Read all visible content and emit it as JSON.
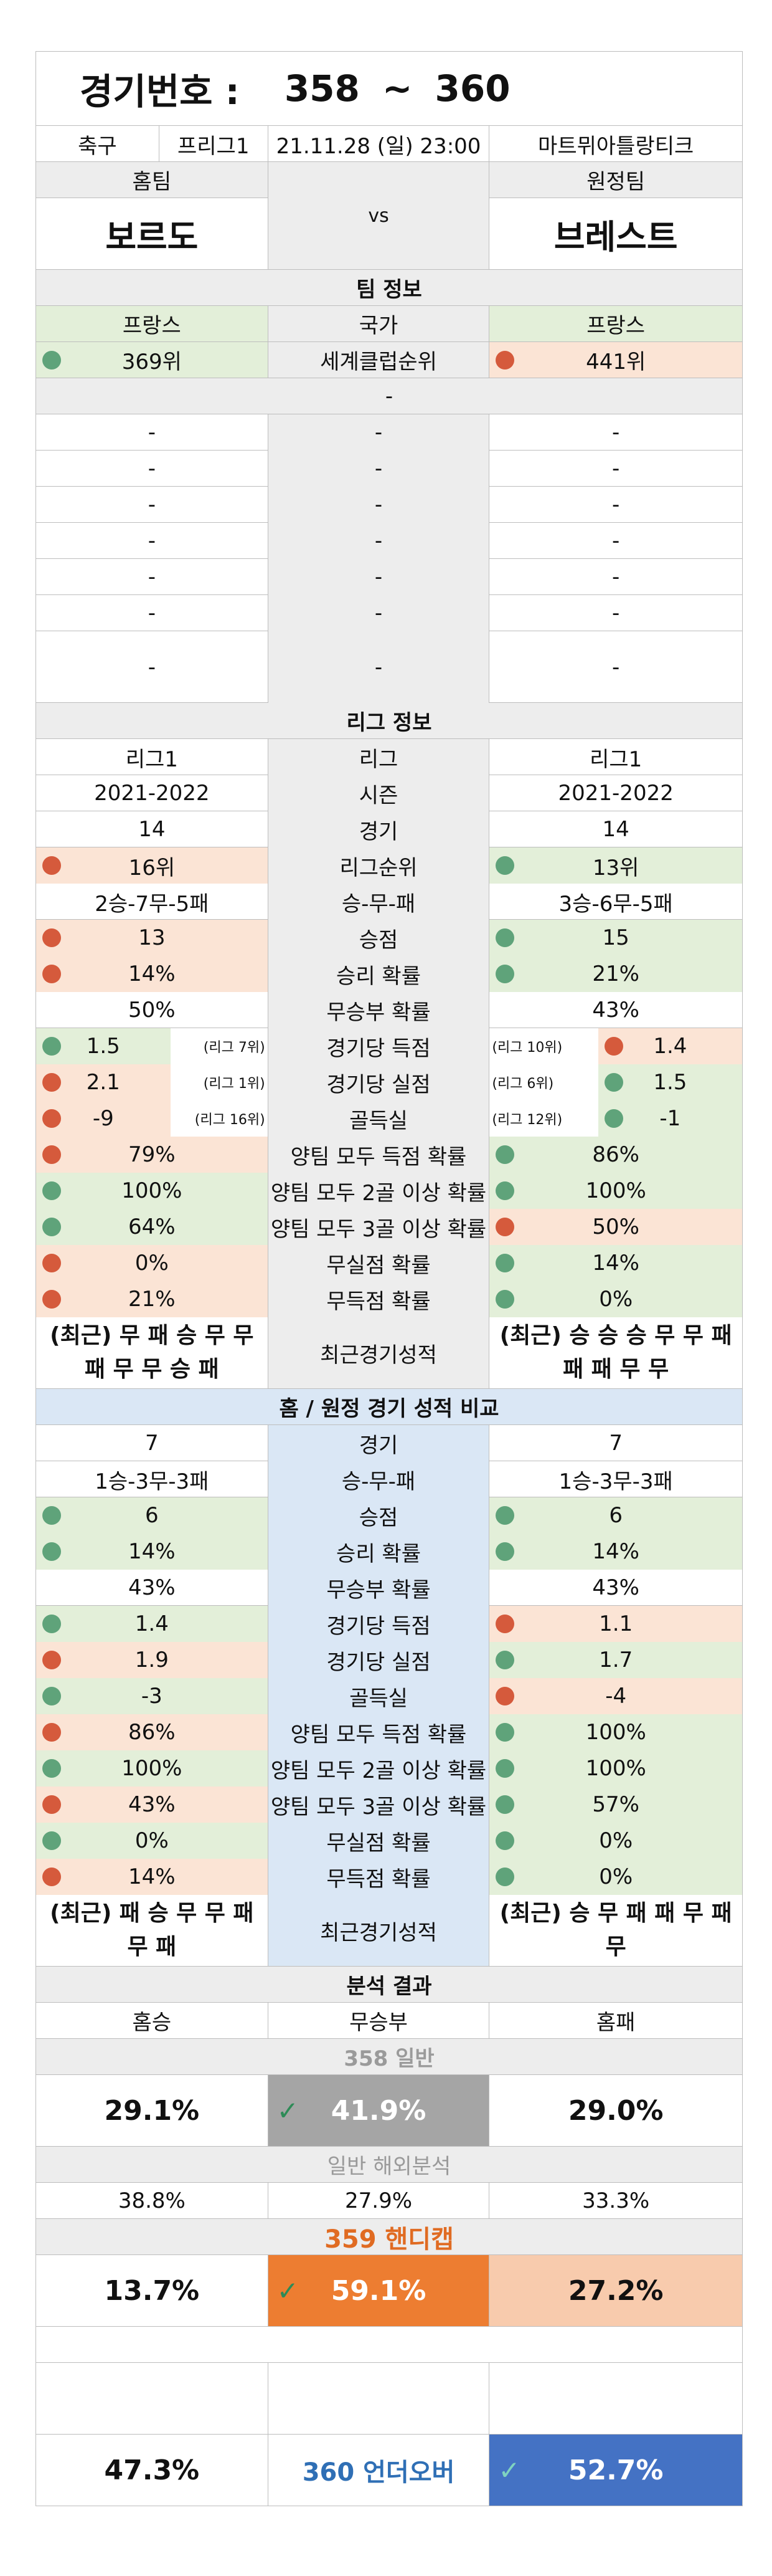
{
  "header": {
    "label": "경기번호 :",
    "from": "358",
    "tilde": "~",
    "to": "360"
  },
  "match": {
    "sport": "축구",
    "league": "프리그1",
    "datetime": "21.11.28 (일) 23:00",
    "venue": "마트뮈아틀랑티크",
    "home_label": "홈팀",
    "away_label": "원정팀",
    "home": "보르도",
    "away": "브레스트",
    "vs": "vs"
  },
  "team_info": {
    "title": "팀 정보",
    "country_label": "국가",
    "home_country": "프랑스",
    "away_country": "프랑스",
    "club_rank_label": "세계클럽순위",
    "home_club_rank": "369위",
    "away_club_rank": "441위",
    "dash": "-"
  },
  "league_info": {
    "title": "리그 정보",
    "rows": [
      {
        "label": "리그",
        "home": "리그1",
        "away": "리그1"
      },
      {
        "label": "시즌",
        "home": "2021-2022",
        "away": "2021-2022"
      },
      {
        "label": "경기",
        "home": "14",
        "away": "14"
      },
      {
        "label": "리그순위",
        "home": "16위",
        "away": "13위"
      },
      {
        "label": "승-무-패",
        "home": "2승-7무-5패",
        "away": "3승-6무-5패"
      },
      {
        "label": "승점",
        "home": "13",
        "away": "15"
      },
      {
        "label": "승리 확률",
        "home": "14%",
        "away": "21%"
      },
      {
        "label": "무승부 확률",
        "home": "50%",
        "away": "43%"
      },
      {
        "label": "경기당 득점",
        "home": "1.5",
        "home_rank": "(리그 7위)",
        "away": "1.4",
        "away_rank": "(리그 10위)"
      },
      {
        "label": "경기당 실점",
        "home": "2.1",
        "home_rank": "(리그 1위)",
        "away": "1.5",
        "away_rank": "(리그 6위)"
      },
      {
        "label": "골득실",
        "home": "-9",
        "home_rank": "(리그 16위)",
        "away": "-1",
        "away_rank": "(리그 12위)"
      },
      {
        "label": "양팀 모두 득점 확률",
        "home": "79%",
        "away": "86%"
      },
      {
        "label": "양팀 모두 2골 이상 확률",
        "home": "100%",
        "away": "100%"
      },
      {
        "label": "양팀 모두 3골 이상 확률",
        "home": "64%",
        "away": "50%"
      },
      {
        "label": "무실점 확률",
        "home": "0%",
        "away": "14%"
      },
      {
        "label": "무득점 확률",
        "home": "21%",
        "away": "0%"
      }
    ],
    "recent_label": "최근경기성적",
    "home_recent": "(최근) 무 패 승 무 무 패 무 무 승 패",
    "away_recent": "(최근) 승 승 승 무 무 패 패 패 무 무"
  },
  "ha_compare": {
    "title": "홈 / 원정 경기 성적 비교",
    "rows": [
      {
        "label": "경기",
        "home": "7",
        "away": "7"
      },
      {
        "label": "승-무-패",
        "home": "1승-3무-3패",
        "away": "1승-3무-3패"
      },
      {
        "label": "승점",
        "home": "6",
        "away": "6"
      },
      {
        "label": "승리 확률",
        "home": "14%",
        "away": "14%"
      },
      {
        "label": "무승부 확률",
        "home": "43%",
        "away": "43%"
      },
      {
        "label": "경기당 득점",
        "home": "1.4",
        "away": "1.1"
      },
      {
        "label": "경기당 실점",
        "home": "1.9",
        "away": "1.7"
      },
      {
        "label": "골득실",
        "home": "-3",
        "away": "-4"
      },
      {
        "label": "양팀 모두 득점 확률",
        "home": "86%",
        "away": "100%"
      },
      {
        "label": "양팀 모두 2골 이상 확률",
        "home": "100%",
        "away": "100%"
      },
      {
        "label": "양팀 모두 3골 이상 확률",
        "home": "43%",
        "away": "57%"
      },
      {
        "label": "무실점 확률",
        "home": "0%",
        "away": "0%"
      },
      {
        "label": "무득점 확률",
        "home": "14%",
        "away": "0%"
      }
    ],
    "recent_label": "최근경기성적",
    "home_recent": "(최근) 패 승 무 무 패 무 패",
    "away_recent": "(최근) 승 무 패 패 무 패 무"
  },
  "analysis": {
    "title": "분석 결과",
    "col_home_win": "홈승",
    "col_draw": "무승부",
    "col_home_loss": "홈패",
    "g358_label": "358 일반",
    "g358_home": "29.1%",
    "g358_draw": "41.9%",
    "g358_away": "29.0%",
    "overseas_label": "일반 해외분석",
    "overseas_home": "38.8%",
    "overseas_draw": "27.9%",
    "overseas_away": "33.3%",
    "g359_label": "359 핸디캡",
    "g359_home": "13.7%",
    "g359_draw": "59.1%",
    "g359_away": "27.2%",
    "g360_under": "47.3%",
    "g360_label": "360 언더오버",
    "g360_over": "52.7%",
    "check": "✓"
  },
  "colors": {
    "green_dot": "#5fa37a",
    "red_dot": "#d55a3c",
    "orange": "#ed7d31",
    "blue": "#4472c4"
  }
}
